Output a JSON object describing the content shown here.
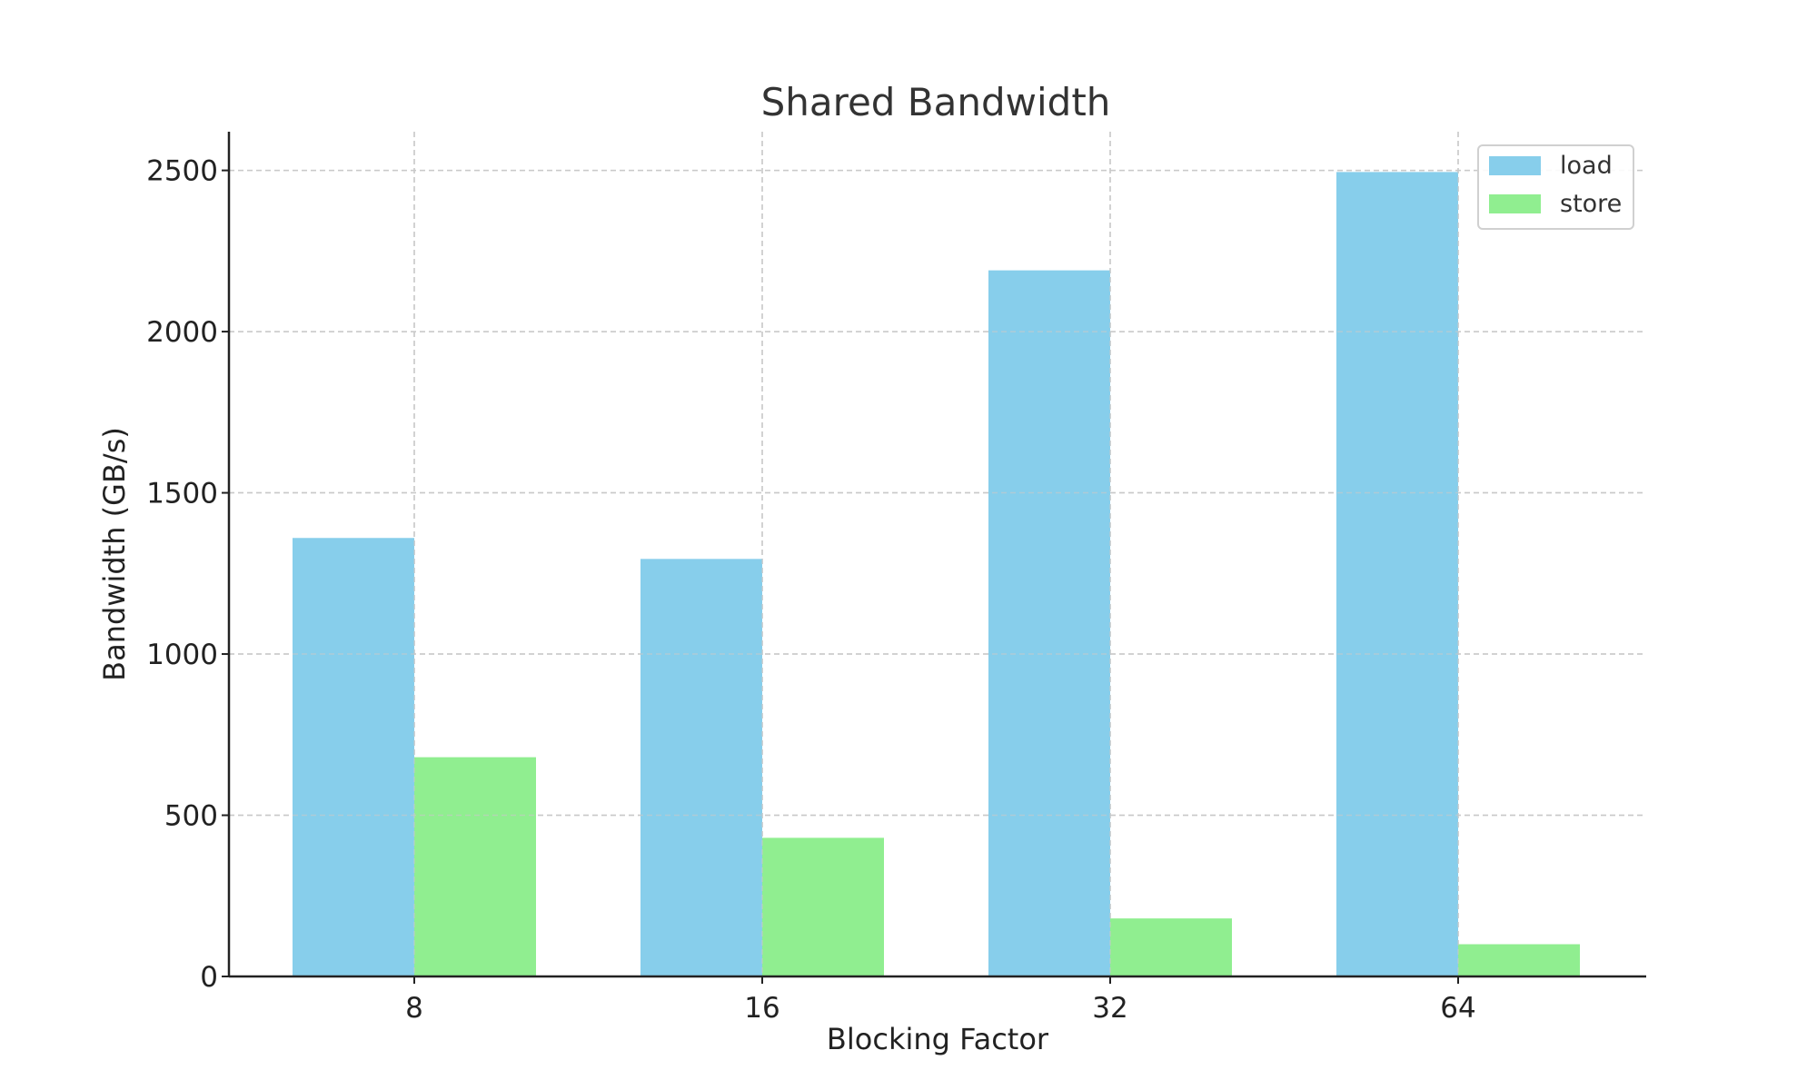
{
  "chart_data": {
    "type": "bar",
    "title": "Shared Bandwidth",
    "xlabel": "Blocking Factor",
    "ylabel": "Bandwidth (GB/s)",
    "categories": [
      "8",
      "16",
      "32",
      "64"
    ],
    "series": [
      {
        "name": "load",
        "color": "#87ceeb",
        "values": [
          1360,
          1295,
          2190,
          2495
        ]
      },
      {
        "name": "store",
        "color": "#90ee90",
        "values": [
          680,
          430,
          180,
          100
        ]
      }
    ],
    "ylim": [
      0,
      2620
    ],
    "yticks": [
      0,
      500,
      1000,
      1500,
      2000,
      2500
    ],
    "grid": true,
    "legend_position": "top-right"
  }
}
